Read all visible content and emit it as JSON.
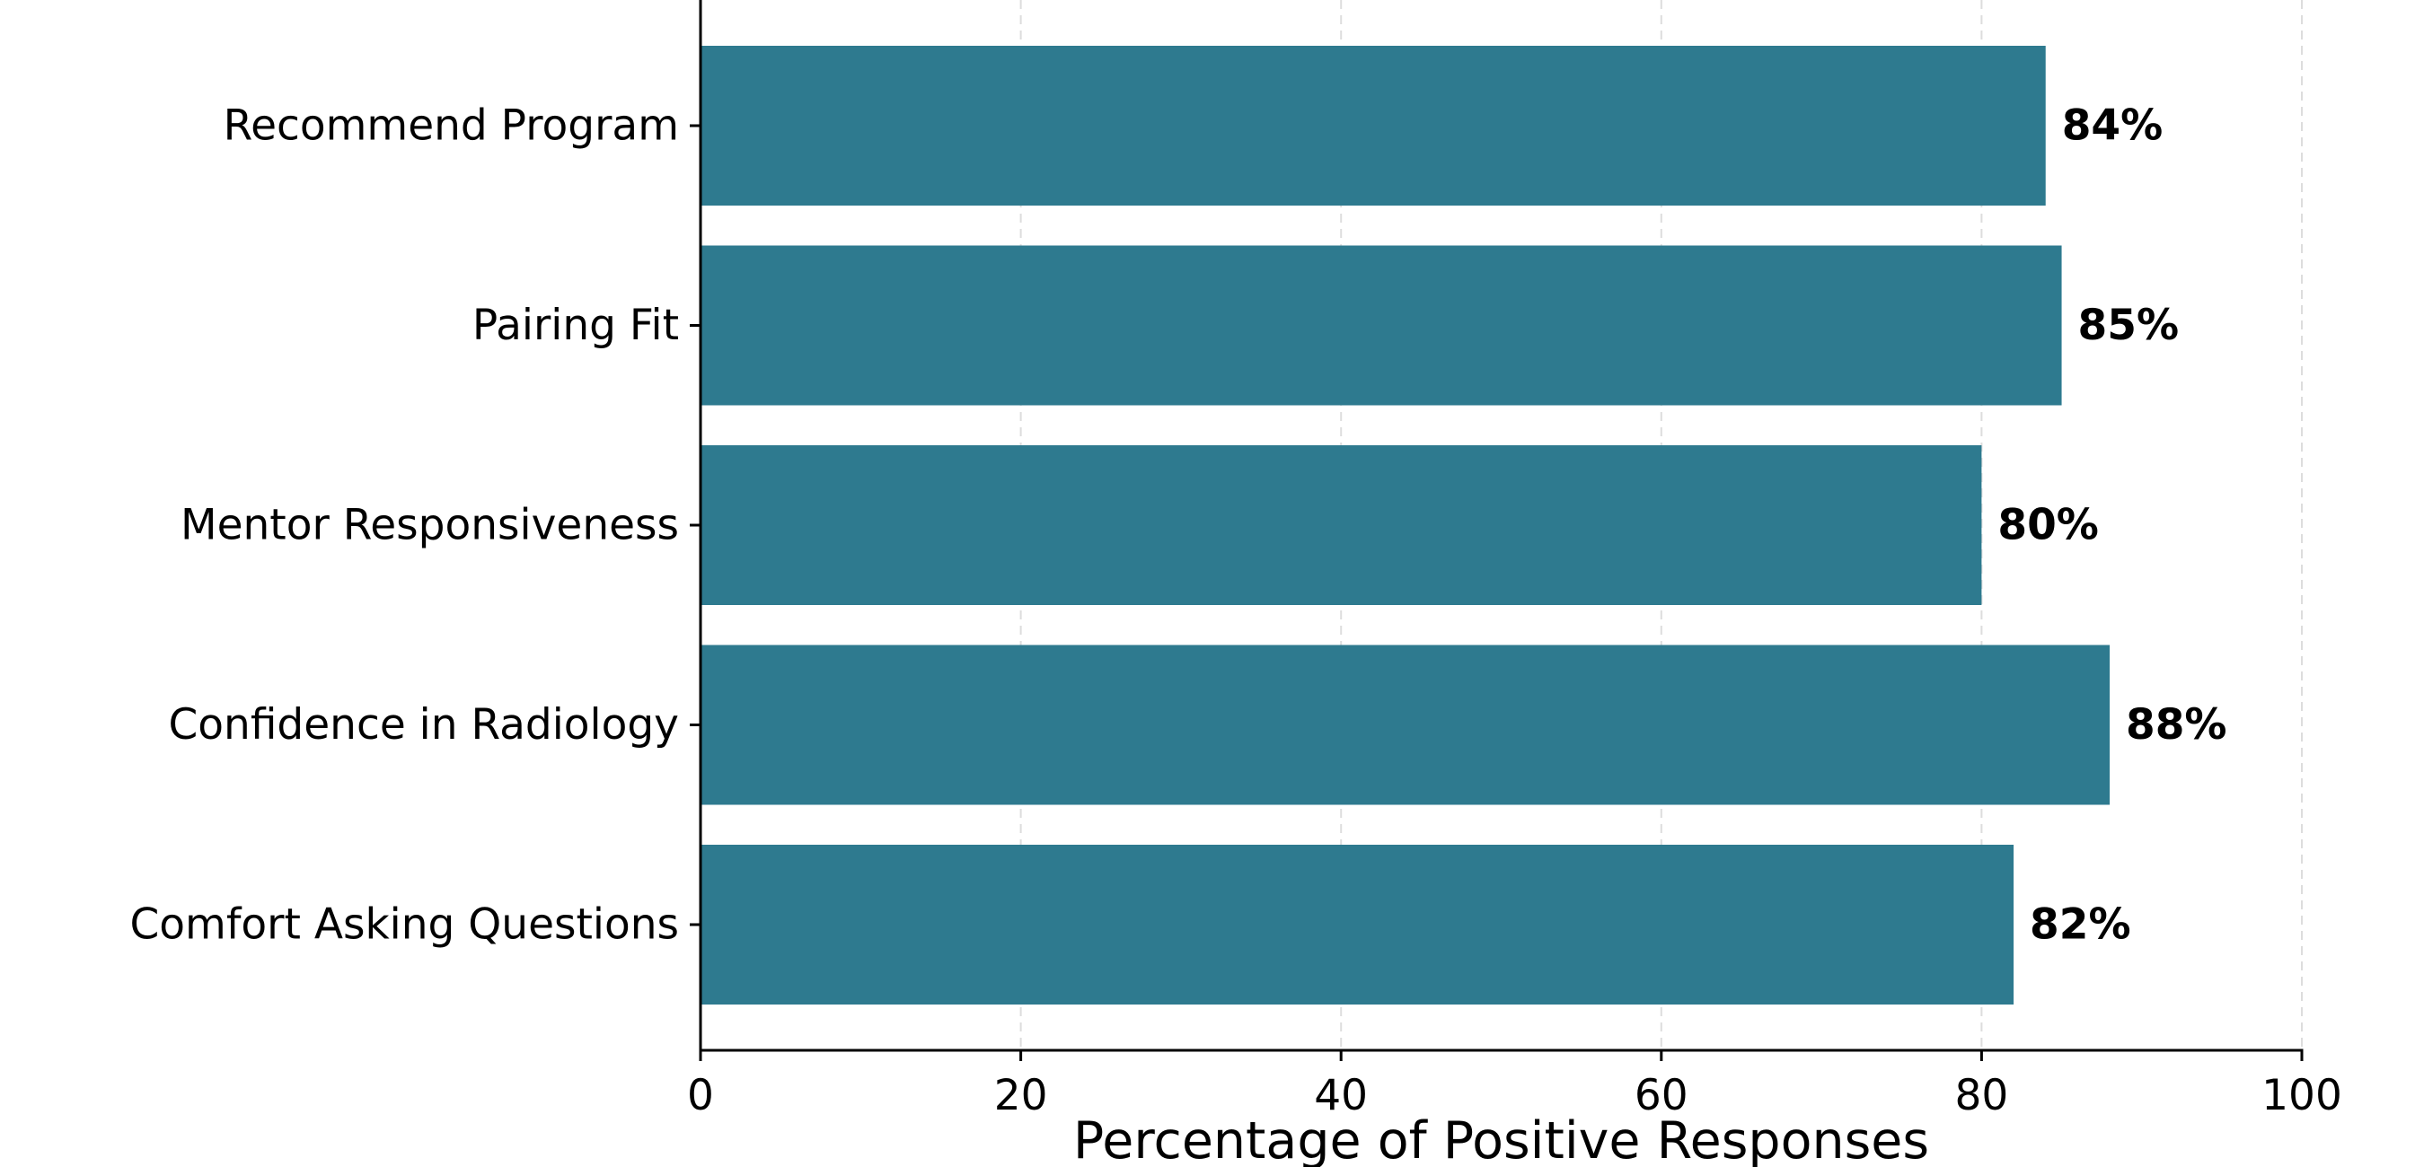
{
  "chart_data": {
    "type": "bar",
    "orientation": "horizontal",
    "categories": [
      "Comfort Asking Questions",
      "Confidence in Radiology",
      "Mentor Responsiveness",
      "Pairing Fit",
      "Recommend Program"
    ],
    "values": [
      82,
      88,
      80,
      85,
      84
    ],
    "value_labels": [
      "82%",
      "88%",
      "80%",
      "85%",
      "84%"
    ],
    "title": "",
    "xlabel": "Percentage of Positive Responses",
    "ylabel": "",
    "xlim": [
      0,
      100
    ],
    "x_ticks": [
      0,
      20,
      40,
      60,
      80,
      100
    ],
    "x_tick_labels": [
      "0",
      "20",
      "40",
      "60",
      "80",
      "100"
    ],
    "grid": "x-axis dashed",
    "bar_color": "#2e7a8f",
    "grid_color": "#dddddd"
  }
}
